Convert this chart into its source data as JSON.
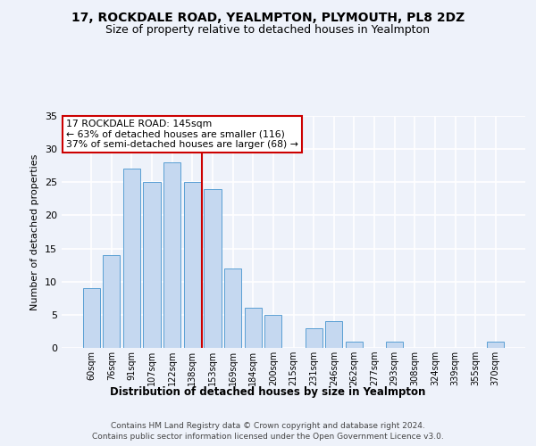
{
  "title1": "17, ROCKDALE ROAD, YEALMPTON, PLYMOUTH, PL8 2DZ",
  "title2": "Size of property relative to detached houses in Yealmpton",
  "xlabel": "Distribution of detached houses by size in Yealmpton",
  "ylabel": "Number of detached properties",
  "categories": [
    "60sqm",
    "76sqm",
    "91sqm",
    "107sqm",
    "122sqm",
    "138sqm",
    "153sqm",
    "169sqm",
    "184sqm",
    "200sqm",
    "215sqm",
    "231sqm",
    "246sqm",
    "262sqm",
    "277sqm",
    "293sqm",
    "308sqm",
    "324sqm",
    "339sqm",
    "355sqm",
    "370sqm"
  ],
  "values": [
    9,
    14,
    27,
    25,
    28,
    25,
    24,
    12,
    6,
    5,
    0,
    3,
    4,
    1,
    0,
    1,
    0,
    0,
    0,
    0,
    1
  ],
  "bar_color": "#c5d8f0",
  "bar_edge_color": "#5a9fd4",
  "subject_line_color": "#cc0000",
  "annotation_text": "17 ROCKDALE ROAD: 145sqm\n← 63% of detached houses are smaller (116)\n37% of semi-detached houses are larger (68) →",
  "annotation_box_color": "#cc0000",
  "ylim": [
    0,
    35
  ],
  "yticks": [
    0,
    5,
    10,
    15,
    20,
    25,
    30,
    35
  ],
  "footer1": "Contains HM Land Registry data © Crown copyright and database right 2024.",
  "footer2": "Contains public sector information licensed under the Open Government Licence v3.0.",
  "bg_color": "#eef2fa",
  "grid_color": "#ffffff"
}
